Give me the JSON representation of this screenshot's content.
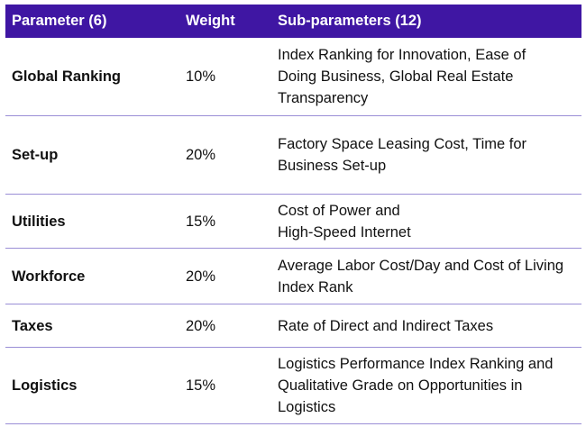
{
  "colors": {
    "header_bg": "#3f16a3",
    "row_divider": "#9a8ed6"
  },
  "headers": [
    "Parameter (6)",
    "Weight",
    "Sub-parameters (12)"
  ],
  "rows": [
    {
      "parameter": "Global Ranking",
      "weight": "10%",
      "sub": "Index Ranking for Innovation, Ease of Doing Business, Global Real Estate Transparency"
    },
    {
      "parameter": "Set-up",
      "weight": "20%",
      "sub": "Factory Space Leasing Cost, Time for Business Set-up"
    },
    {
      "parameter": "Utilities",
      "weight": "15%",
      "sub": "Cost of Power and\nHigh-Speed Internet"
    },
    {
      "parameter": "Workforce",
      "weight": "20%",
      "sub": "Average Labor Cost/Day and Cost of Living Index Rank"
    },
    {
      "parameter": "Taxes",
      "weight": "20%",
      "sub": "Rate of Direct and Indirect Taxes"
    },
    {
      "parameter": "Logistics",
      "weight": "15%",
      "sub": "Logistics Performance Index Ranking and Qualitative Grade on Opportunities in Logistics"
    }
  ]
}
